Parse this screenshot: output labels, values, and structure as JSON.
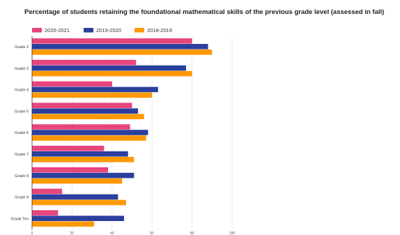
{
  "chart_data": {
    "type": "bar",
    "orientation": "horizontal",
    "title": "Percentage of students retaining the foundational mathematical skills of the previous grade level (assessed in fall)",
    "categories": [
      "Grade 2",
      "Grade 3",
      "Grade 4",
      "Grade 5",
      "Grade 6",
      "Grade 7",
      "Grade 8",
      "Grade 9",
      "Grade Ten"
    ],
    "series": [
      {
        "name": "2020-2021",
        "color": "#e8457c",
        "values": [
          80,
          52,
          40,
          50,
          49,
          36,
          38,
          15,
          13
        ]
      },
      {
        "name": "2019-2020",
        "color": "#2b3f9e",
        "values": [
          88,
          77,
          63,
          53,
          58,
          48,
          51,
          43,
          46
        ]
      },
      {
        "name": "2018-2019",
        "color": "#ff9900",
        "values": [
          90,
          80,
          60,
          56,
          57,
          51,
          45,
          47,
          31
        ]
      }
    ],
    "xlim": [
      0,
      100
    ],
    "xticks": [
      0,
      20,
      40,
      60,
      80,
      100
    ],
    "grid": true,
    "legend_position": "top-left",
    "xlabel": "",
    "ylabel": ""
  }
}
